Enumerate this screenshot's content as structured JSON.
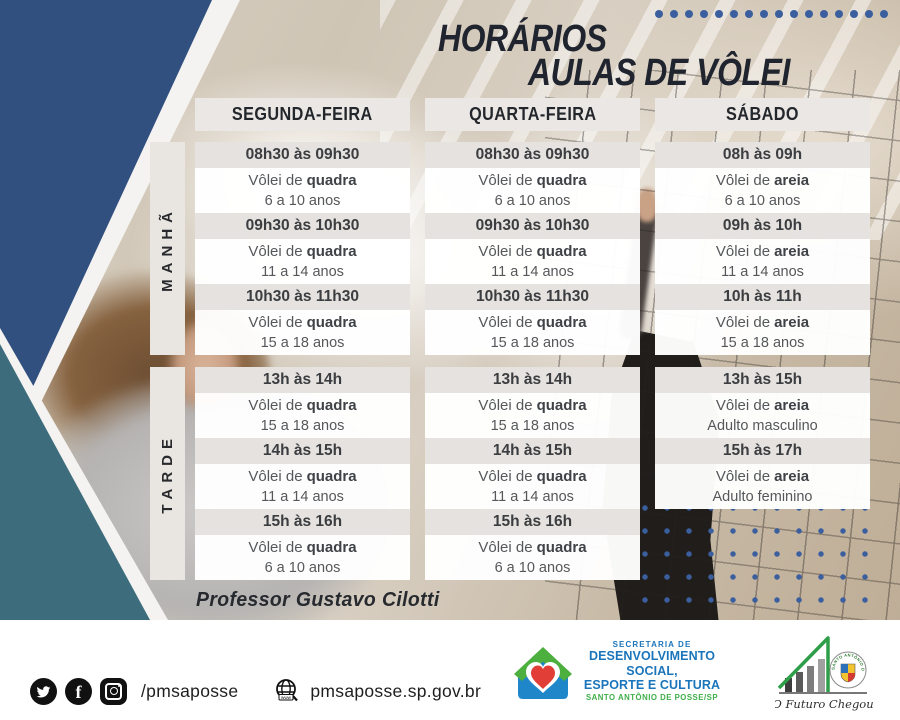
{
  "title": {
    "line1": "HORÁRIOS",
    "line2": "AULAS DE VÔLEI"
  },
  "days": {
    "monday": "SEGUNDA-FEIRA",
    "wednesday": "QUARTA-FEIRA",
    "saturday": "SÁBADO"
  },
  "period_labels": {
    "morning": "MANHÃ",
    "afternoon": "TARDE"
  },
  "schedule": {
    "segunda": {
      "morning": [
        {
          "time": "08h30 às 09h30",
          "sport_prefix": "Vôlei de",
          "sport": "quadra",
          "group": "6 a 10 anos"
        },
        {
          "time": "09h30 às 10h30",
          "sport_prefix": "Vôlei de",
          "sport": "quadra",
          "group": "11 a 14 anos"
        },
        {
          "time": "10h30 às 11h30",
          "sport_prefix": "Vôlei de",
          "sport": "quadra",
          "group": "15 a 18 anos"
        }
      ],
      "afternoon": [
        {
          "time": "13h às 14h",
          "sport_prefix": "Vôlei de",
          "sport": "quadra",
          "group": "15 a 18 anos"
        },
        {
          "time": "14h às 15h",
          "sport_prefix": "Vôlei de",
          "sport": "quadra",
          "group": "11 a 14 anos"
        },
        {
          "time": "15h às 16h",
          "sport_prefix": "Vôlei de",
          "sport": "quadra",
          "group": "6 a 10 anos"
        }
      ]
    },
    "quarta": {
      "morning": [
        {
          "time": "08h30 às 09h30",
          "sport_prefix": "Vôlei de",
          "sport": "quadra",
          "group": "6 a 10 anos"
        },
        {
          "time": "09h30 às 10h30",
          "sport_prefix": "Vôlei de",
          "sport": "quadra",
          "group": "11 a 14 anos"
        },
        {
          "time": "10h30 às 11h30",
          "sport_prefix": "Vôlei de",
          "sport": "quadra",
          "group": "15 a 18 anos"
        }
      ],
      "afternoon": [
        {
          "time": "13h às 14h",
          "sport_prefix": "Vôlei de",
          "sport": "quadra",
          "group": "15 a 18 anos"
        },
        {
          "time": "14h às 15h",
          "sport_prefix": "Vôlei de",
          "sport": "quadra",
          "group": "11 a 14 anos"
        },
        {
          "time": "15h às 16h",
          "sport_prefix": "Vôlei de",
          "sport": "quadra",
          "group": "6 a 10 anos"
        }
      ]
    },
    "sabado": {
      "morning": [
        {
          "time": "08h às 09h",
          "sport_prefix": "Vôlei de",
          "sport": "areia",
          "group": "6 a 10 anos"
        },
        {
          "time": "09h às 10h",
          "sport_prefix": "Vôlei de",
          "sport": "areia",
          "group": "11 a 14 anos"
        },
        {
          "time": "10h às 11h",
          "sport_prefix": "Vôlei de",
          "sport": "areia",
          "group": "15 a 18 anos"
        }
      ],
      "afternoon": [
        {
          "time": "13h às 15h",
          "sport_prefix": "Vôlei de",
          "sport": "areia",
          "group": "Adulto masculino"
        },
        {
          "time": "15h às 17h",
          "sport_prefix": "Vôlei de",
          "sport": "areia",
          "group": "Adulto feminino"
        }
      ]
    }
  },
  "professor": "Professor Gustavo Cilotti",
  "footer": {
    "social_handle": "/pmsaposse",
    "website": "pmsaposse.sp.gov.br",
    "globe_label": "www",
    "secretariat": {
      "line1": "SECRETARIA DE",
      "line2": "DESENVOLVIMENTO SOCIAL,",
      "line3": "ESPORTE E CULTURA",
      "line4": "SANTO ANTÔNIO DE POSSE/SP"
    },
    "city": {
      "seal_text": "SANTO ANTÔNIO DE POSSE-SP",
      "motto": "O Futuro Chegou"
    }
  },
  "decor": {
    "title_dot_count": 16,
    "dot_color": "#3b5f9e",
    "navy": "#31507f",
    "teal": "#3d6d7c",
    "strip_gray": "#e5e2df",
    "secretariat_blue": "#1b75bb",
    "secretariat_green": "#3fae49"
  }
}
